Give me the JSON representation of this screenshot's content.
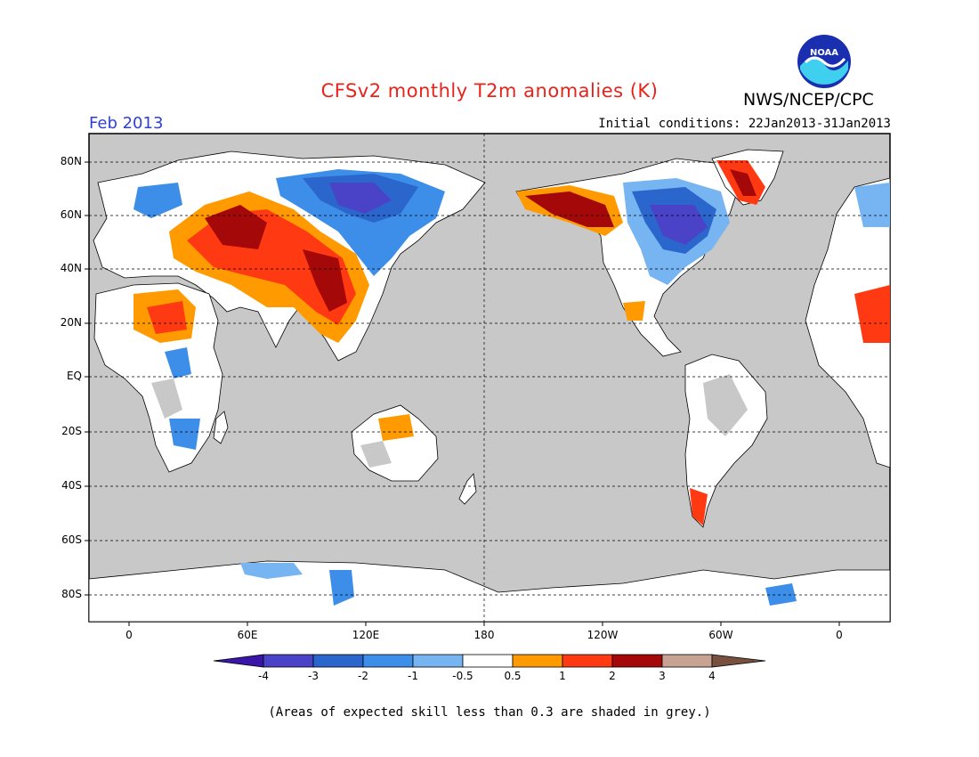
{
  "header": {
    "title": "CFSv2 monthly T2m anomalies (K)",
    "month": "Feb 2013",
    "initial_conditions": "Initial conditions: 22Jan2013-31Jan2013",
    "org": "NWS/NCEP/CPC",
    "logo_text": "NOAA"
  },
  "map": {
    "lat_labels": [
      "80N",
      "60N",
      "40N",
      "20N",
      "EQ",
      "20S",
      "40S",
      "60S",
      "80S"
    ],
    "lon_labels": [
      "0",
      "60E",
      "120E",
      "180",
      "120W",
      "60W",
      "0"
    ],
    "colors": {
      "land_no_skill": "#c8c8c8",
      "ocean": "#c8c8c8",
      "neutral": "#ffffff"
    }
  },
  "colorbar": {
    "ticks": [
      "-4",
      "-3",
      "-2",
      "-1",
      "-0.5",
      "0.5",
      "1",
      "2",
      "3",
      "4"
    ],
    "colors": [
      "#3a16a8",
      "#4a43c8",
      "#2a66cc",
      "#3d8ee8",
      "#77b4f2",
      "#ffffff",
      "#ff9a00",
      "#ff3a12",
      "#a40808",
      "#c8a292",
      "#775040"
    ]
  },
  "footer": {
    "note": "(Areas of expected skill less than 0.3 are shaded in grey.)"
  }
}
